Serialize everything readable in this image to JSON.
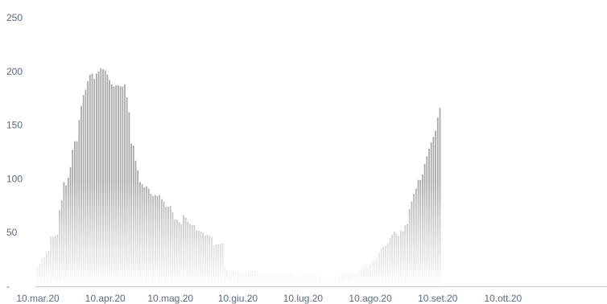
{
  "chart_data": {
    "type": "bar",
    "title": "",
    "xlabel": "",
    "ylabel": "",
    "ylim": [
      0,
      250
    ],
    "y_ticks": [
      {
        "value": 0,
        "label": "-"
      },
      {
        "value": 50,
        "label": "50"
      },
      {
        "value": 100,
        "label": "100"
      },
      {
        "value": 150,
        "label": "150"
      },
      {
        "value": 200,
        "label": "200"
      },
      {
        "value": 250,
        "label": "250"
      }
    ],
    "x_start": "2020-03-10",
    "x_ticks": [
      {
        "date": "2020-03-10",
        "label": "10.mar.20"
      },
      {
        "date": "2020-04-10",
        "label": "10.apr.20"
      },
      {
        "date": "2020-05-10",
        "label": "10.mag.20"
      },
      {
        "date": "2020-06-10",
        "label": "10.giu.20"
      },
      {
        "date": "2020-07-10",
        "label": "10.lug.20"
      },
      {
        "date": "2020-08-10",
        "label": "10.ago.20"
      },
      {
        "date": "2020-09-10",
        "label": "10.set.20"
      },
      {
        "date": "2020-10-10",
        "label": "10.ott.20"
      }
    ],
    "grid": false,
    "legend": false,
    "bar_color": "#a9a9a9",
    "bar_fade_color": "#ffffff",
    "axis_color": "#c8c8c8",
    "label_color": "#5b6a82",
    "values": [
      18,
      21,
      26,
      27,
      32,
      33,
      46,
      46,
      47,
      48,
      71,
      80,
      97,
      94,
      101,
      111,
      127,
      135,
      135,
      155,
      168,
      178,
      183,
      191,
      197,
      198,
      193,
      198,
      200,
      203,
      202,
      201,
      197,
      192,
      188,
      186,
      187,
      187,
      186,
      186,
      188,
      176,
      162,
      133,
      131,
      117,
      108,
      97,
      95,
      92,
      93,
      91,
      86,
      84,
      85,
      84,
      85,
      81,
      79,
      74,
      74,
      75,
      69,
      62,
      62,
      60,
      58,
      66,
      64,
      60,
      58,
      57,
      57,
      52,
      52,
      51,
      50,
      47,
      48,
      47,
      46,
      38,
      39,
      39,
      40,
      40,
      18,
      15,
      14,
      14,
      14,
      14,
      14,
      12,
      12,
      12,
      13,
      14,
      14,
      14,
      14,
      12,
      11,
      11,
      10,
      10,
      10,
      10,
      10,
      10,
      10,
      10,
      10,
      10,
      10,
      10,
      10,
      10,
      9,
      9,
      10,
      9,
      9,
      10,
      10,
      10,
      10,
      10,
      10,
      7,
      7,
      7,
      7,
      7,
      7,
      7,
      7,
      8,
      8,
      10,
      10,
      11,
      12,
      12,
      12,
      11,
      11,
      12,
      15,
      16,
      18,
      19,
      18,
      20,
      23,
      24,
      26,
      31,
      35,
      37,
      38,
      40,
      45,
      48,
      51,
      49,
      47,
      52,
      51,
      57,
      58,
      72,
      79,
      86,
      91,
      99,
      99,
      104,
      114,
      121,
      128,
      134,
      139,
      145,
      157,
      166
    ]
  }
}
